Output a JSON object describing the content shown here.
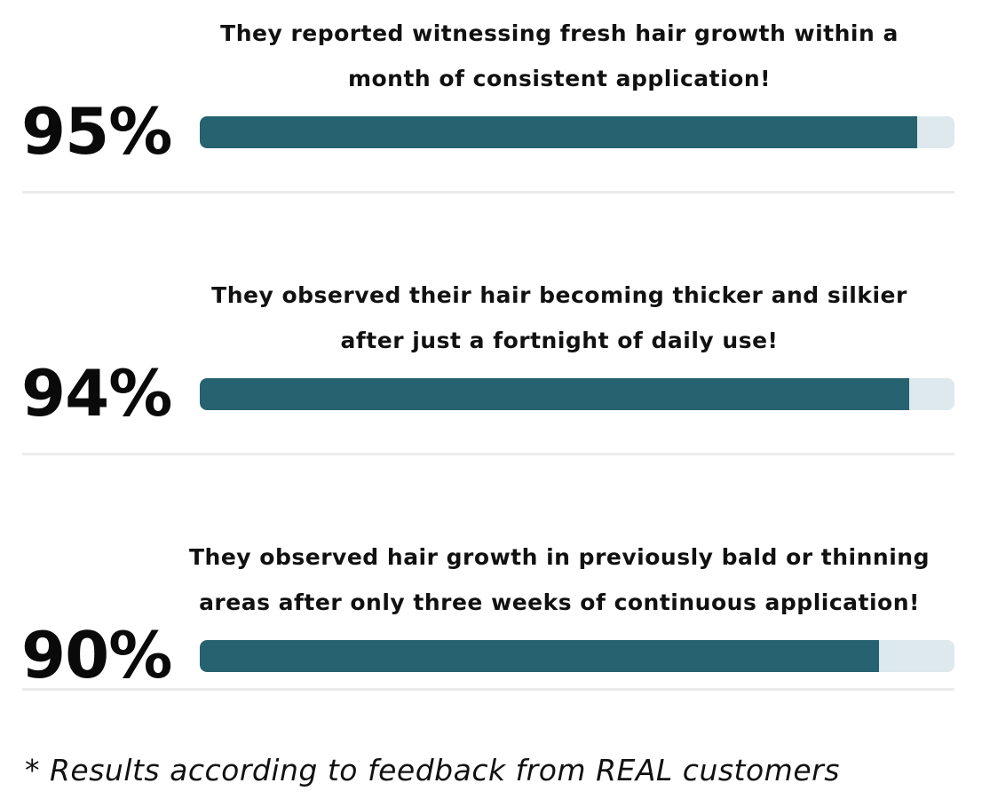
{
  "stats": [
    {
      "percent_label": "95%",
      "fill_fraction": 0.95,
      "text_lines": [
        "They reported witnessing fresh hair growth within a",
        "month of consistent application!"
      ]
    },
    {
      "percent_label": "94%",
      "fill_fraction": 0.94,
      "text_lines": [
        "They observed their hair becoming thicker and silkier",
        "after just a fortnight of daily use!"
      ]
    },
    {
      "percent_label": "90%",
      "fill_fraction": 0.9,
      "text_lines": [
        "They observed hair growth in previously bald or thinning",
        "areas after only three weeks of continuous application!"
      ]
    }
  ],
  "footnote": "* Results according to feedback from REAL customers",
  "colors": {
    "bar_fill": "#266270",
    "bar_track": "#dde9ec",
    "divider": "#ebebeb"
  }
}
